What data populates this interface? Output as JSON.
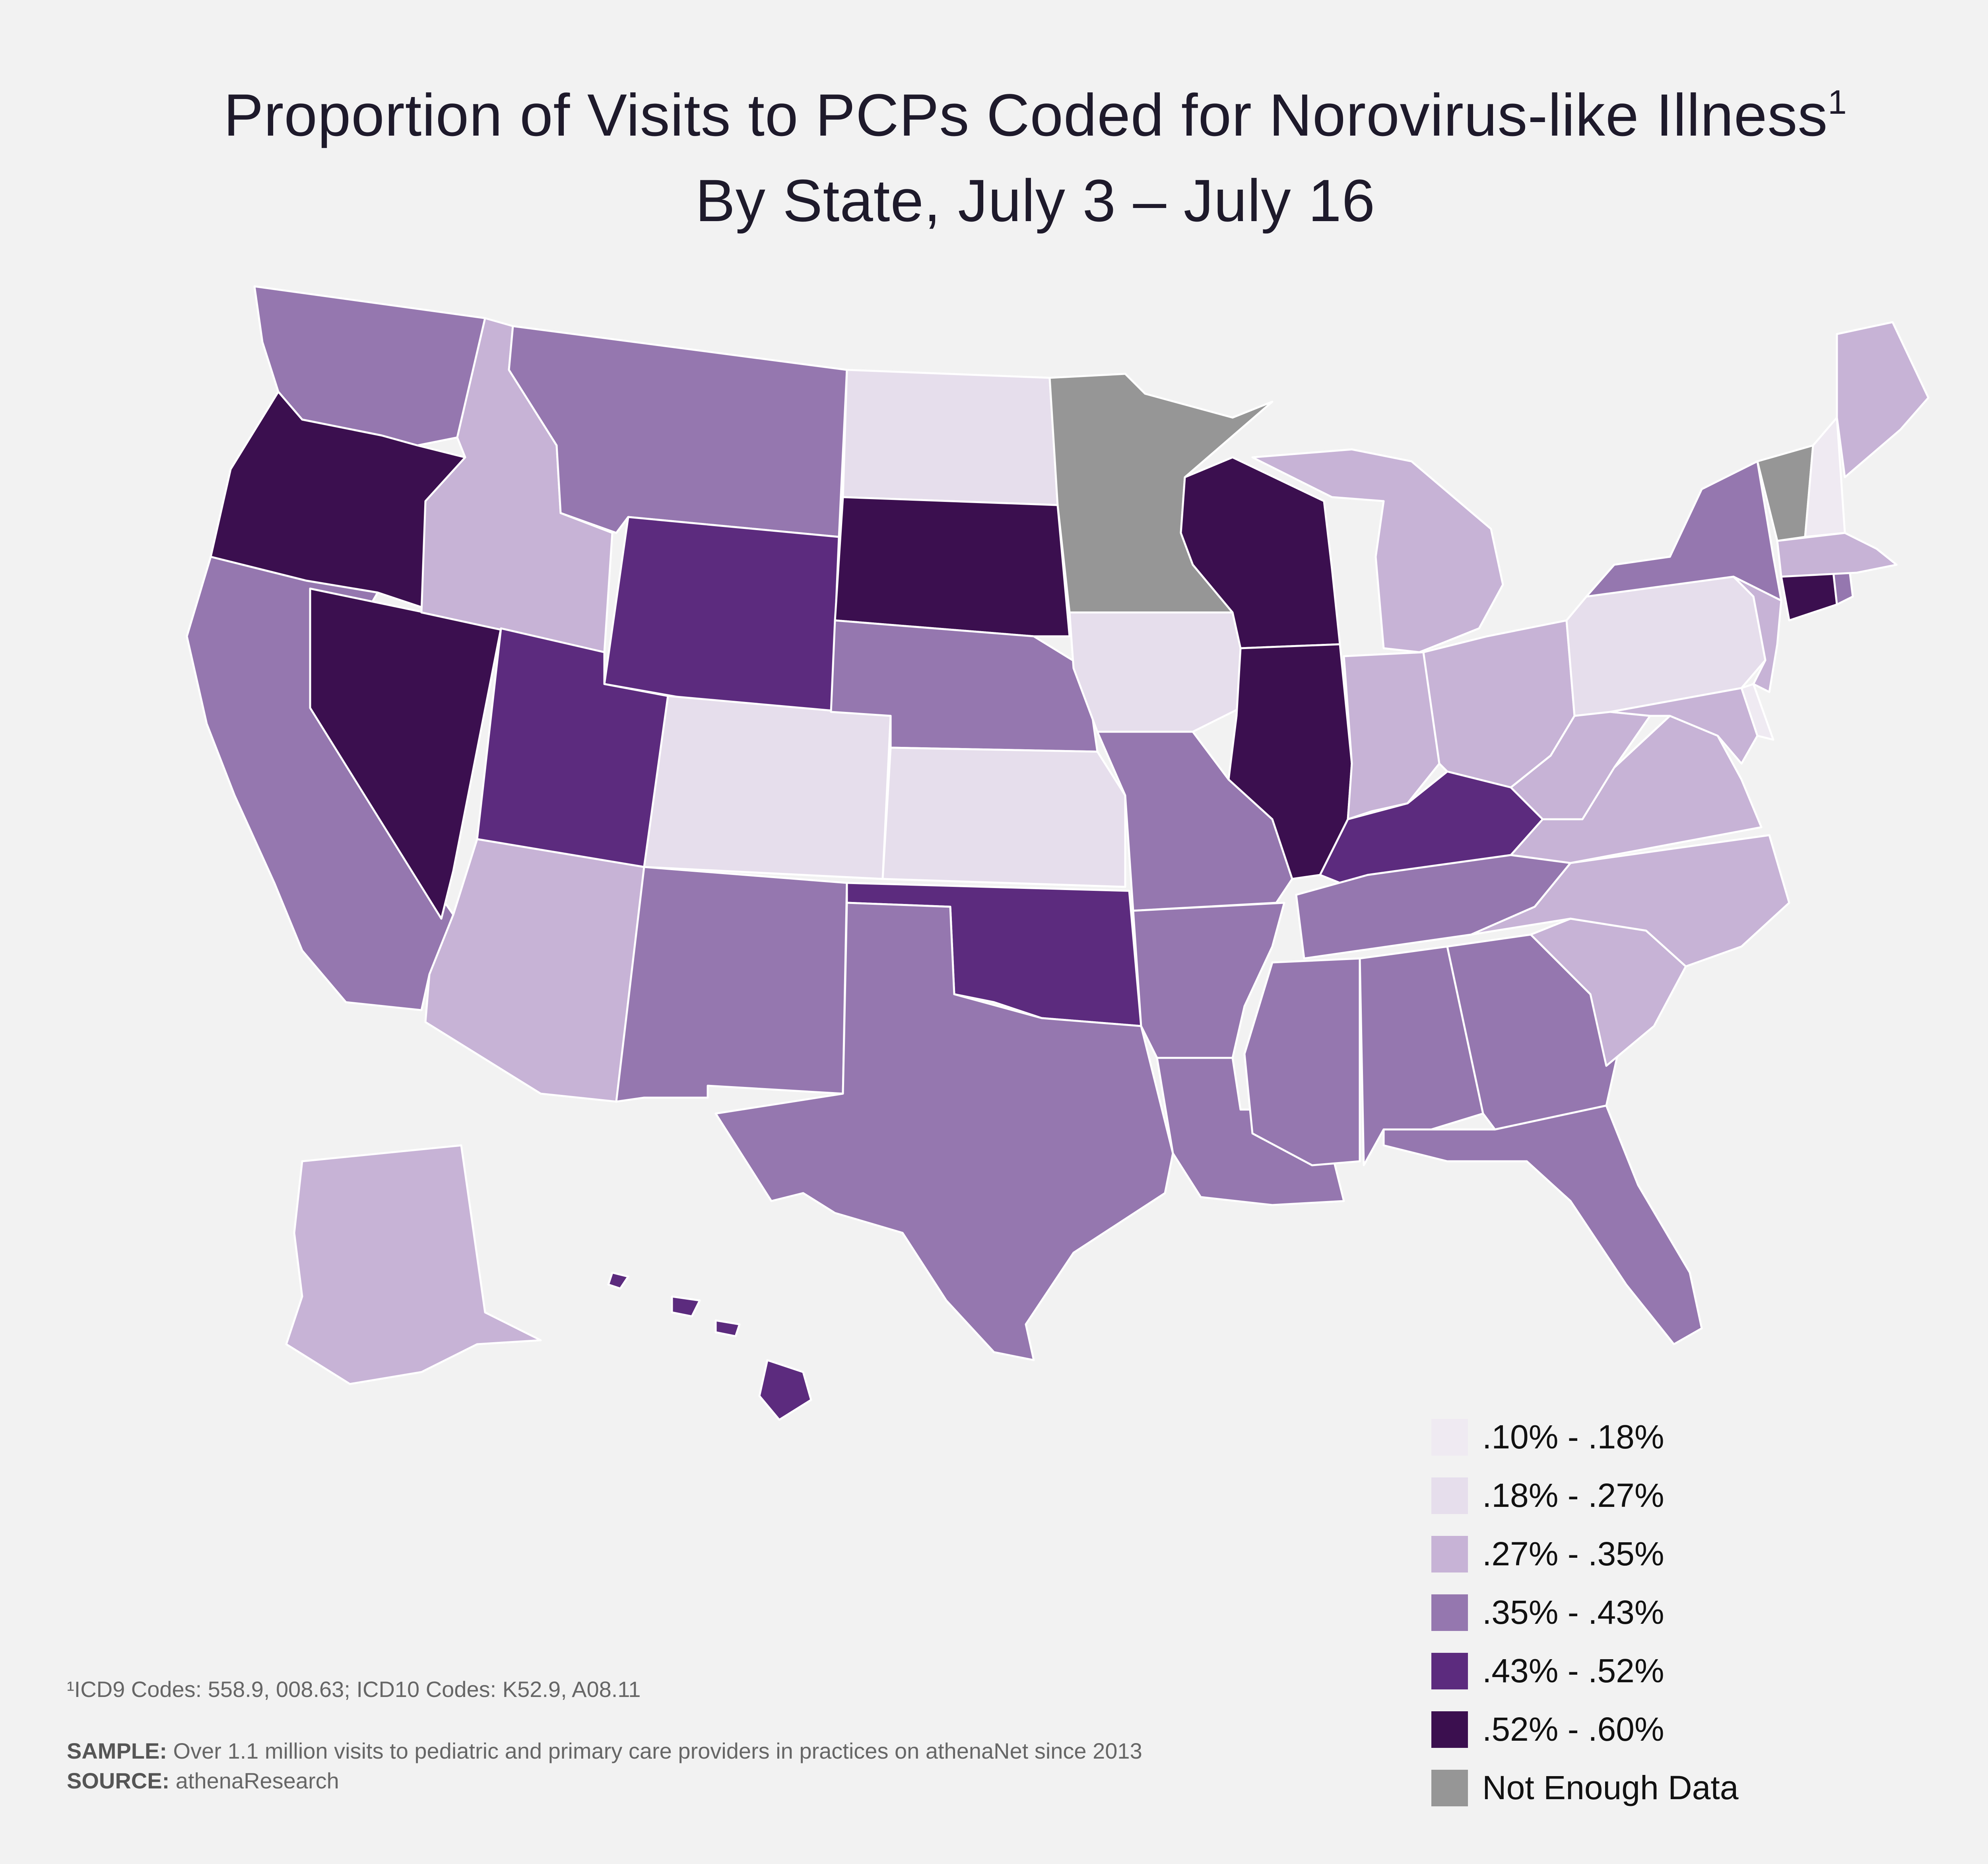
{
  "title": {
    "line1": "Proportion of Visits to PCPs Coded for Norovirus-like Illness",
    "line1_sup": "1",
    "line2": "By State, July 3 – July 16"
  },
  "legend": [
    {
      "label": ".10% - .18%",
      "color": "#efeaf2"
    },
    {
      "label": ".18% - .27%",
      "color": "#e6deec"
    },
    {
      "label": ".27% - .35%",
      "color": "#c7b3d6"
    },
    {
      "label": ".35% - .43%",
      "color": "#9577af"
    },
    {
      "label": ".43% - .52%",
      "color": "#5c2b7e"
    },
    {
      "label": ".52% - .60%",
      "color": "#3b0f4f"
    },
    {
      "label": "Not Enough Data",
      "color": "#969696"
    }
  ],
  "map_data": {
    "WA": ".35% - .43%",
    "OR": ".52% - .60%",
    "CA": ".35% - .43%",
    "NV": ".52% - .60%",
    "ID": ".27% - .35%",
    "MT": ".35% - .43%",
    "WY": ".43% - .52%",
    "UT": ".43% - .52%",
    "AZ": ".27% - .35%",
    "CO": ".18% - .27%",
    "NM": ".35% - .43%",
    "ND": ".18% - .27%",
    "SD": ".52% - .60%",
    "NE": ".35% - .43%",
    "KS": ".18% - .27%",
    "OK": ".43% - .52%",
    "TX": ".35% - .43%",
    "MN": "Not Enough Data",
    "IA": ".18% - .27%",
    "MO": ".35% - .43%",
    "AR": ".35% - .43%",
    "LA": ".35% - .43%",
    "WI": ".52% - .60%",
    "IL": ".52% - .60%",
    "MI": ".27% - .35%",
    "IN": ".27% - .35%",
    "OH": ".27% - .35%",
    "KY": ".43% - .52%",
    "TN": ".35% - .43%",
    "MS": ".35% - .43%",
    "AL": ".35% - .43%",
    "GA": ".35% - .43%",
    "FL": ".35% - .43%",
    "SC": ".27% - .35%",
    "NC": ".27% - .35%",
    "VA": ".27% - .35%",
    "WV": ".27% - .35%",
    "MD": ".27% - .35%",
    "DE": ".10% - .18%",
    "PA": ".18% - .27%",
    "NJ": ".27% - .35%",
    "NY": ".35% - .43%",
    "CT": ".52% - .60%",
    "RI": ".35% - .43%",
    "MA": ".27% - .35%",
    "VT": "Not Enough Data",
    "NH": ".10% - .18%",
    "ME": ".27% - .35%",
    "AK": ".27% - .35%",
    "HI": ".43% - .52%"
  },
  "footnote": "¹ICD9 Codes: 558.9, 008.63; ICD10 Codes: K52.9, A08.11",
  "sample_label": "SAMPLE:",
  "sample_text": " Over 1.1 million visits to pediatric and primary care providers in practices on athenaNet since 2013",
  "source_label": "SOURCE:",
  "source_text": " athenaResearch"
}
